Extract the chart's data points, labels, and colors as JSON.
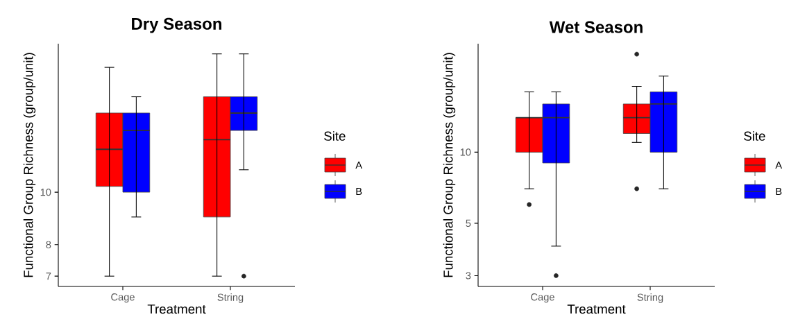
{
  "chart_data": [
    {
      "type": "box",
      "title": "Dry Season",
      "xlabel": "Treatment",
      "ylabel": "Functional Group Richness (group/unit)",
      "legend_title": "Site",
      "legend": "right",
      "log": true,
      "categories": [
        "Cage",
        "String"
      ],
      "ylim": [
        6.7,
        18.8
      ],
      "yticks": [
        7,
        8,
        10
      ],
      "series": [
        {
          "name": "A",
          "color": "#ff0000",
          "boxes": [
            {
              "low": 7,
              "q1": 10.25,
              "median": 12,
              "q3": 14,
              "high": 17
            },
            {
              "low": 7,
              "q1": 9,
              "median": 12.5,
              "q3": 15,
              "high": 18
            }
          ]
        },
        {
          "name": "B",
          "color": "#0000ff",
          "boxes": [
            {
              "low": 9,
              "q1": 10,
              "median": 13,
              "q3": 14,
              "high": 15
            },
            {
              "low": 11,
              "q1": 13,
              "median": 14,
              "q3": 15,
              "high": 18,
              "outliers": [
                7
              ]
            }
          ]
        }
      ]
    },
    {
      "type": "box",
      "title": "Wet Season",
      "xlabel": "Treatment",
      "ylabel": "Functional Group Richness (group/unit)",
      "legend_title": "Site",
      "legend": "right",
      "log": true,
      "categories": [
        "Cage",
        "String"
      ],
      "ylim": [
        2.7,
        28.8
      ],
      "yticks": [
        3,
        5,
        10
      ],
      "series": [
        {
          "name": "A",
          "color": "#ff0000",
          "boxes": [
            {
              "low": 7,
              "q1": 10,
              "median": 14,
              "q3": 14,
              "high": 18,
              "outliers": [
                6
              ]
            },
            {
              "low": 11,
              "q1": 12,
              "median": 14,
              "q3": 16,
              "high": 19,
              "outliers": [
                26,
                7
              ]
            }
          ]
        },
        {
          "name": "B",
          "color": "#0000ff",
          "boxes": [
            {
              "low": 4,
              "q1": 9,
              "median": 14,
              "q3": 16,
              "high": 18,
              "outliers": [
                3
              ]
            },
            {
              "low": 7,
              "q1": 10,
              "median": 16,
              "q3": 18,
              "high": 21
            }
          ]
        }
      ]
    }
  ]
}
